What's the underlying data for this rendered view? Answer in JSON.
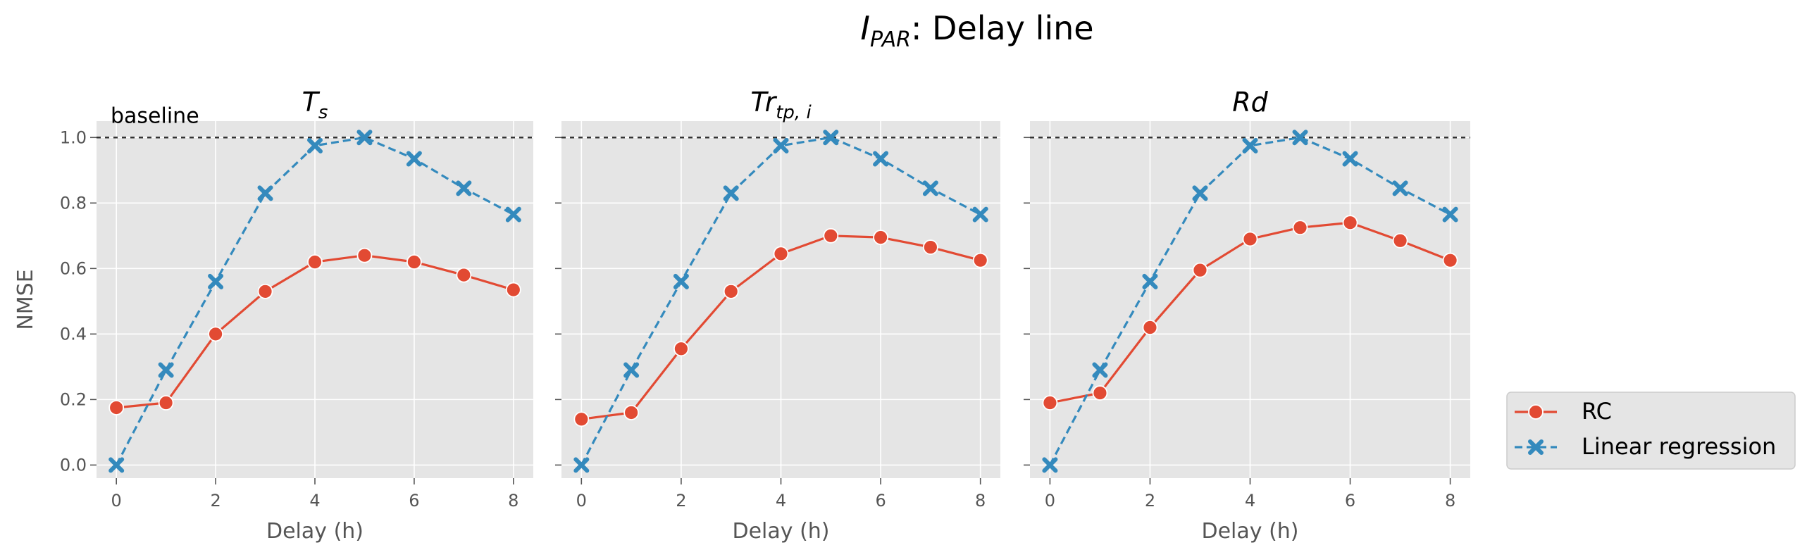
{
  "figure": {
    "title_main": "I",
    "title_sub": "PAR",
    "title_rest": ": Delay line"
  },
  "legend": {
    "placement": "outside-right-bottom",
    "entries": [
      {
        "name": "RC",
        "color": "#E24A33",
        "marker": "circle",
        "linestyle": "solid"
      },
      {
        "name": "Linear regression",
        "color": "#348ABD",
        "marker": "x",
        "linestyle": "dashed"
      }
    ]
  },
  "chart_data": [
    {
      "type": "line",
      "title": "T",
      "title_sub": "s",
      "xlabel": "Delay (h)",
      "ylabel": "NMSE",
      "baseline": {
        "y": 1.0,
        "label": "baseline"
      },
      "xlim": [
        -0.4,
        8.4
      ],
      "ylim": [
        -0.04,
        1.05
      ],
      "xticks": [
        0,
        2,
        4,
        6,
        8
      ],
      "yticks": [
        "0.0",
        "0.2",
        "0.4",
        "0.6",
        "0.8",
        "1.0"
      ],
      "grid": true,
      "x": [
        0,
        1,
        2,
        3,
        4,
        5,
        6,
        7,
        8
      ],
      "series": [
        {
          "name": "RC",
          "values": [
            0.175,
            0.19,
            0.4,
            0.53,
            0.62,
            0.64,
            0.62,
            0.58,
            0.535
          ]
        },
        {
          "name": "Linear regression",
          "values": [
            0.0,
            0.29,
            0.56,
            0.83,
            0.975,
            1.0,
            0.935,
            0.845,
            0.765
          ]
        }
      ]
    },
    {
      "type": "line",
      "title": "Tr",
      "title_sub": "tp, i",
      "xlabel": "Delay (h)",
      "ylabel": "",
      "baseline": {
        "y": 1.0,
        "label": ""
      },
      "xlim": [
        -0.4,
        8.4
      ],
      "ylim": [
        -0.04,
        1.05
      ],
      "xticks": [
        0,
        2,
        4,
        6,
        8
      ],
      "yticks": [],
      "grid": true,
      "x": [
        0,
        1,
        2,
        3,
        4,
        5,
        6,
        7,
        8
      ],
      "series": [
        {
          "name": "RC",
          "values": [
            0.14,
            0.16,
            0.355,
            0.53,
            0.645,
            0.7,
            0.695,
            0.665,
            0.625
          ]
        },
        {
          "name": "Linear regression",
          "values": [
            0.0,
            0.29,
            0.56,
            0.83,
            0.975,
            1.0,
            0.935,
            0.845,
            0.765
          ]
        }
      ]
    },
    {
      "type": "line",
      "title": "Rd",
      "title_sub": "",
      "xlabel": "Delay (h)",
      "ylabel": "",
      "baseline": {
        "y": 1.0,
        "label": ""
      },
      "xlim": [
        -0.4,
        8.4
      ],
      "ylim": [
        -0.04,
        1.05
      ],
      "xticks": [
        0,
        2,
        4,
        6,
        8
      ],
      "yticks": [],
      "grid": true,
      "x": [
        0,
        1,
        2,
        3,
        4,
        5,
        6,
        7,
        8
      ],
      "series": [
        {
          "name": "RC",
          "values": [
            0.19,
            0.22,
            0.42,
            0.595,
            0.69,
            0.725,
            0.74,
            0.685,
            0.625
          ]
        },
        {
          "name": "Linear regression",
          "values": [
            0.0,
            0.29,
            0.56,
            0.83,
            0.975,
            1.0,
            0.935,
            0.845,
            0.765
          ]
        }
      ]
    }
  ]
}
